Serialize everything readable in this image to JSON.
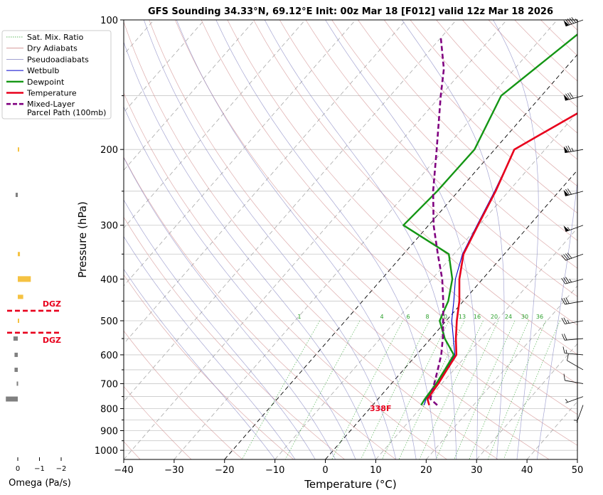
{
  "chart_data": {
    "type": "line",
    "title": "GFS Sounding 34.33°N, 69.12°E Init: 00z Mar 18 [F012] valid 12z Mar 18 2026",
    "xlabel": "Temperature (°C)",
    "ylabel": "Pressure (hPa)",
    "xlim": [
      -40,
      50
    ],
    "ylim": [
      1050,
      100
    ],
    "x_ticks": [
      "−40",
      "−30",
      "−20",
      "−10",
      "0",
      "10",
      "20",
      "30",
      "40",
      "50"
    ],
    "p_ticks": [
      {
        "p": 100,
        "label": "100"
      },
      {
        "p": 200,
        "label": "200"
      },
      {
        "p": 300,
        "label": "300"
      },
      {
        "p": 400,
        "label": "400"
      },
      {
        "p": 500,
        "label": "500"
      },
      {
        "p": 600,
        "label": "600"
      },
      {
        "p": 700,
        "label": "700"
      },
      {
        "p": 800,
        "label": "800"
      },
      {
        "p": 900,
        "label": "900"
      },
      {
        "p": 1000,
        "label": "1000"
      }
    ],
    "legend": [
      {
        "key": "mix",
        "label": "Sat. Mix. Ratio"
      },
      {
        "key": "dry",
        "label": "Dry Adiabats"
      },
      {
        "key": "moist",
        "label": "Pseudoadiabats"
      },
      {
        "key": "wetbulb",
        "label": "Wetbulb"
      },
      {
        "key": "dewpoint",
        "label": "Dewpoint"
      },
      {
        "key": "temperature",
        "label": "Temperature"
      },
      {
        "key": "parcel",
        "label": "Mixed-Layer",
        "label2": "Parcel Path (100mb)"
      }
    ],
    "series": [
      {
        "name": "Temperature",
        "color": "#e8001c",
        "points": [
          [
            785,
            11.2
          ],
          [
            760,
            9.8
          ],
          [
            700,
            9.3
          ],
          [
            650,
            8.6
          ],
          [
            600,
            7.9
          ],
          [
            550,
            5.0
          ],
          [
            500,
            2.1
          ],
          [
            450,
            -0.8
          ],
          [
            400,
            -4.6
          ],
          [
            350,
            -8.1
          ],
          [
            300,
            -10.2
          ],
          [
            250,
            -12.6
          ],
          [
            200,
            -16.1
          ],
          [
            150,
            -6.8
          ],
          [
            120,
            -2.0
          ],
          [
            100,
            2.6
          ]
        ]
      },
      {
        "name": "Wetbulb",
        "color": "#0000cc",
        "points": [
          [
            785,
            10.2
          ],
          [
            760,
            9.5
          ],
          [
            700,
            9.0
          ],
          [
            650,
            8.4
          ],
          [
            600,
            7.6
          ],
          [
            550,
            4.5
          ],
          [
            500,
            1.1
          ],
          [
            450,
            -1.9
          ],
          [
            400,
            -5.4
          ],
          [
            350,
            -8.3
          ],
          [
            300,
            -10.4
          ],
          [
            250,
            -12.8
          ],
          [
            200,
            -16.1
          ],
          [
            150,
            -6.8
          ],
          [
            120,
            -2.1
          ],
          [
            100,
            2.5
          ]
        ]
      },
      {
        "name": "Dewpoint",
        "color": "#149614",
        "points": [
          [
            785,
            9.6
          ],
          [
            760,
            9.3
          ],
          [
            700,
            8.9
          ],
          [
            650,
            8.2
          ],
          [
            600,
            7.4
          ],
          [
            550,
            2.8
          ],
          [
            500,
            -1.3
          ],
          [
            450,
            -3.0
          ],
          [
            400,
            -6.0
          ],
          [
            350,
            -11.0
          ],
          [
            300,
            -25.0
          ],
          [
            250,
            -24.2
          ],
          [
            200,
            -24.0
          ],
          [
            150,
            -28.0
          ],
          [
            100,
            -22.4
          ]
        ]
      },
      {
        "name": "Mixed-Layer Parcel Path (100mb)",
        "color": "#800080",
        "points": [
          [
            785,
            12.8
          ],
          [
            760,
            10.4
          ],
          [
            700,
            8.5
          ],
          [
            650,
            6.8
          ],
          [
            600,
            4.9
          ],
          [
            550,
            2.4
          ],
          [
            500,
            -0.6
          ],
          [
            450,
            -4.0
          ],
          [
            400,
            -8.0
          ],
          [
            350,
            -13.2
          ],
          [
            300,
            -19.0
          ],
          [
            250,
            -25.0
          ],
          [
            200,
            -31.5
          ],
          [
            150,
            -40.0
          ],
          [
            130,
            -44.0
          ],
          [
            110,
            -50.0
          ]
        ]
      }
    ],
    "mixing_ratio_labels": [
      "1",
      "4",
      "6",
      "8",
      "10",
      "13",
      "16",
      "20",
      "24",
      "30",
      "36"
    ],
    "lcl_label": "338F",
    "dgz_label": "DGZ",
    "omega": {
      "xlabel": "Omega (Pa/s)",
      "ticks": [
        "0",
        "−1",
        "−2"
      ],
      "bars": [
        {
          "p": 200,
          "value": -0.05,
          "color": "#f5c242"
        },
        {
          "p": 255,
          "value": 0.1,
          "color": "#808080"
        },
        {
          "p": 350,
          "value": -0.1,
          "color": "#f5c242"
        },
        {
          "p": 400,
          "value": -0.6,
          "color": "#f5c242"
        },
        {
          "p": 440,
          "value": -0.25,
          "color": "#f5c242"
        },
        {
          "p": 500,
          "value": -0.05,
          "color": "#f5c242"
        },
        {
          "p": 550,
          "value": 0.2,
          "color": "#808080"
        },
        {
          "p": 600,
          "value": 0.15,
          "color": "#808080"
        },
        {
          "p": 650,
          "value": 0.15,
          "color": "#808080"
        },
        {
          "p": 700,
          "value": 0.05,
          "color": "#808080"
        },
        {
          "p": 760,
          "value": 0.55,
          "color": "#808080"
        }
      ],
      "dgz_pressures": [
        474,
        533
      ]
    },
    "wind_barbs": [
      {
        "p": 100,
        "dir": 250,
        "spd": 95
      },
      {
        "p": 150,
        "dir": 255,
        "spd": 80
      },
      {
        "p": 200,
        "dir": 260,
        "spd": 75
      },
      {
        "p": 250,
        "dir": 255,
        "spd": 70
      },
      {
        "p": 300,
        "dir": 250,
        "spd": 55
      },
      {
        "p": 350,
        "dir": 250,
        "spd": 40
      },
      {
        "p": 400,
        "dir": 255,
        "spd": 35
      },
      {
        "p": 450,
        "dir": 260,
        "spd": 30
      },
      {
        "p": 500,
        "dir": 260,
        "spd": 25
      },
      {
        "p": 550,
        "dir": 265,
        "spd": 20
      },
      {
        "p": 600,
        "dir": 275,
        "spd": 15
      },
      {
        "p": 650,
        "dir": 300,
        "spd": 10
      },
      {
        "p": 700,
        "dir": 280,
        "spd": 10
      },
      {
        "p": 750,
        "dir": 250,
        "spd": 5
      },
      {
        "p": 785,
        "dir": 200,
        "spd": 5
      }
    ]
  }
}
